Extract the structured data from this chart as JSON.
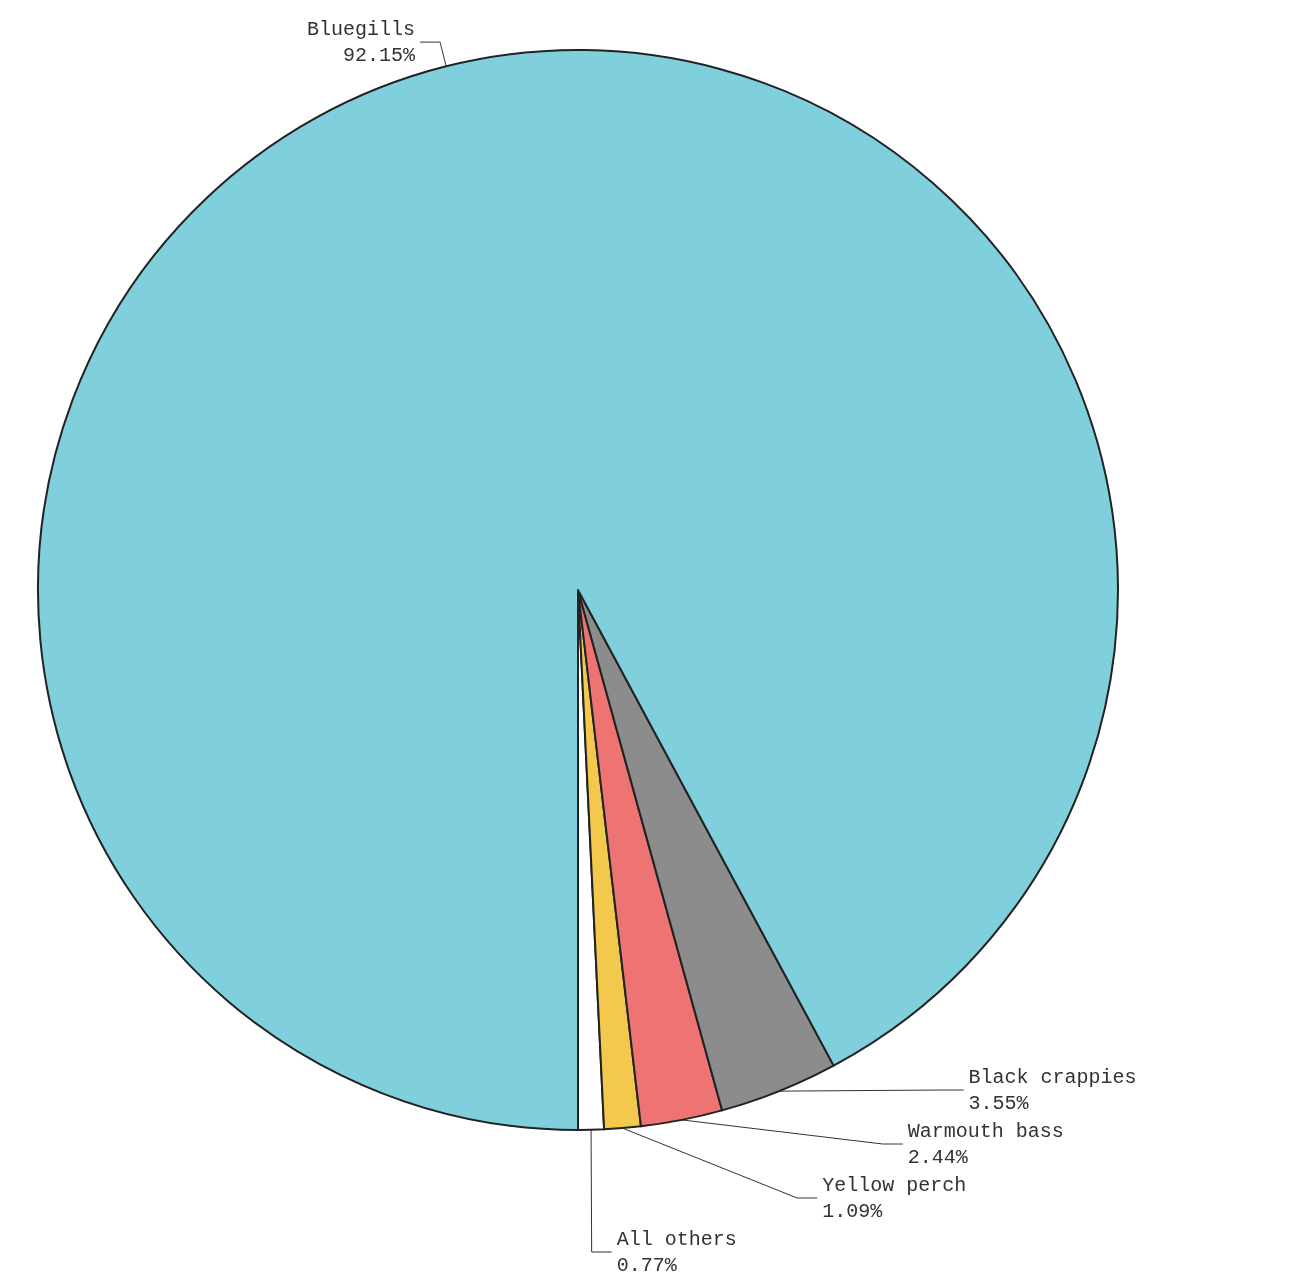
{
  "chart_data": {
    "type": "pie",
    "categories": [
      "All others",
      "Yellow perch",
      "Warmouth bass",
      "Black crappies",
      "Bluegills"
    ],
    "values": [
      0.77,
      1.09,
      2.44,
      3.55,
      92.15
    ],
    "value_labels": [
      "0.77%",
      "1.09%",
      "2.44%",
      "3.55%",
      "92.15%"
    ],
    "colors": [
      "#ffffff",
      "#f2c94c",
      "#ee7474",
      "#8c8c8c",
      "#7fcfdc"
    ],
    "legend": false
  }
}
